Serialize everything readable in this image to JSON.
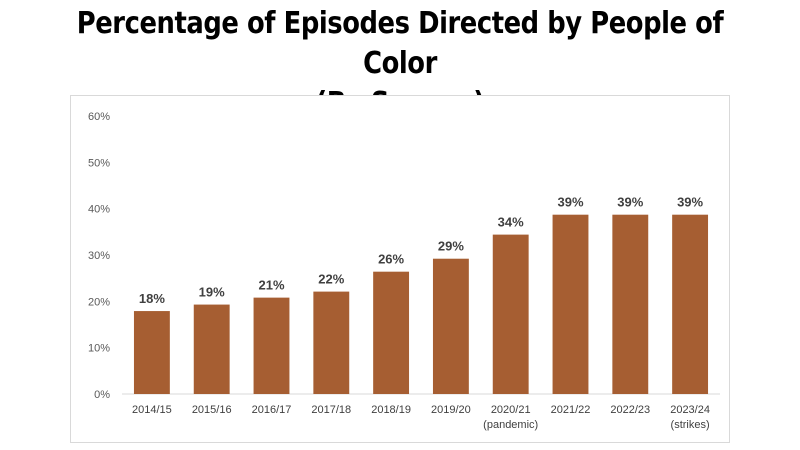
{
  "title": {
    "line1": "Percentage of Episodes Directed by People of Color",
    "line2": "(By Season)"
  },
  "colors": {
    "bar": "#A65E32",
    "axis": "#d9d9d9"
  },
  "chart_data": {
    "type": "bar",
    "title": "Percentage of Episodes Directed by People of Color (By Season)",
    "categories": [
      [
        "2014/15"
      ],
      [
        "2015/16"
      ],
      [
        "2016/17"
      ],
      [
        "2017/18"
      ],
      [
        "2018/19"
      ],
      [
        "2019/20"
      ],
      [
        "2020/21",
        "(pandemic)"
      ],
      [
        "2021/22"
      ],
      [
        "2022/23"
      ],
      [
        "2023/24",
        "(strikes)"
      ]
    ],
    "values": [
      17.9,
      19.3,
      20.8,
      22.1,
      26.4,
      29.2,
      34.4,
      38.7,
      38.7,
      38.7
    ],
    "data_labels": [
      "18%",
      "19%",
      "21%",
      "22%",
      "26%",
      "29%",
      "34%",
      "39%",
      "39%",
      "39%"
    ],
    "yticks": [
      "0%",
      "10%",
      "20%",
      "30%",
      "40%",
      "50%",
      "60%"
    ],
    "ylim": [
      0,
      60
    ],
    "xlabel": "",
    "ylabel": "",
    "grid": false,
    "legend": "none"
  }
}
